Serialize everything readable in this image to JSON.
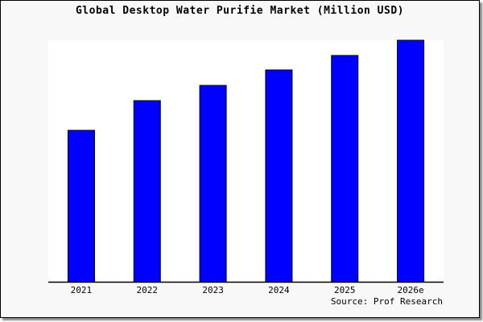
{
  "chart_data": {
    "type": "bar",
    "title": "Global Desktop Water Purifie Market (Million USD)",
    "categories": [
      "2021",
      "2022",
      "2023",
      "2024",
      "2025",
      "2026e"
    ],
    "values": [
      62.7,
      75.0,
      81.3,
      87.7,
      93.7,
      100
    ],
    "value_note_unit": "relative (2026e = 100); no value axis shown",
    "ylim": [
      0,
      100
    ],
    "xlabel": "",
    "ylabel": "",
    "grid": false,
    "bar_color": "#0000ff",
    "source": "Source: Prof Research"
  }
}
